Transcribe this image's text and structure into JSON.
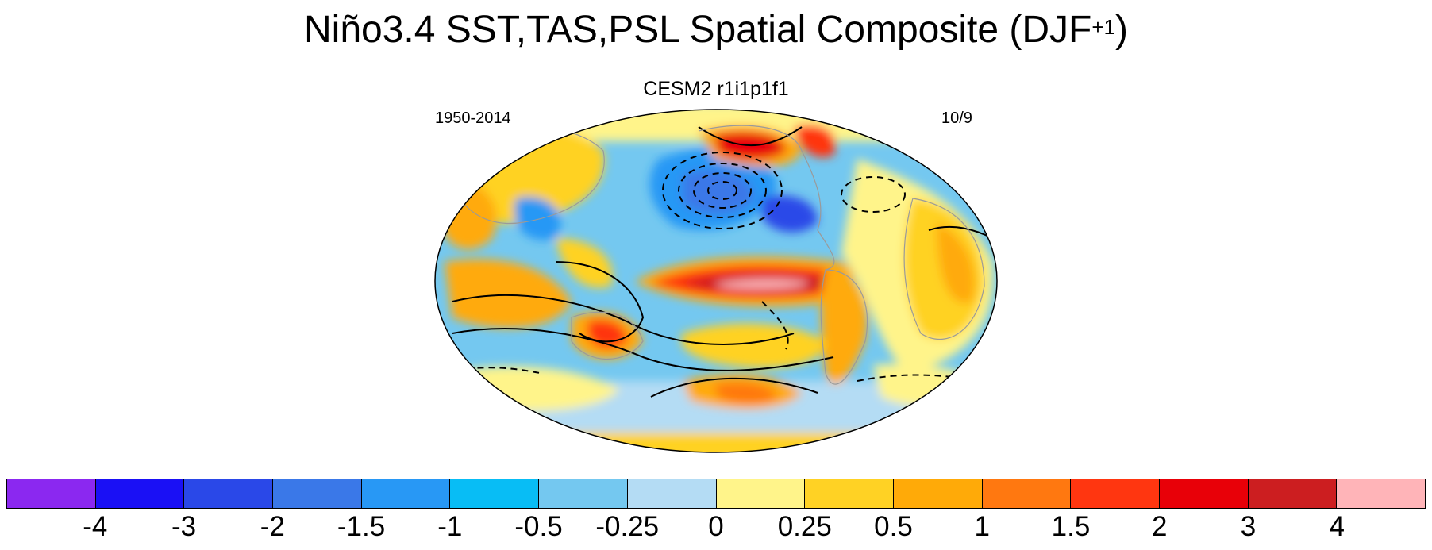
{
  "title": {
    "main": "Niño3.4 SST,TAS,PSL Spatial Composite (DJF",
    "superscript": "+1",
    "close": ")"
  },
  "subtitle": "CESM2 r1i1p1f1",
  "left_label": "1950-2014",
  "right_label": "10/9",
  "colorbar": {
    "colors": [
      "#8b28f0",
      "#1a10f5",
      "#2a48e8",
      "#3a78e8",
      "#2898f5",
      "#08bdf5",
      "#74c8f0",
      "#b4dcf4",
      "#fff48a",
      "#ffd224",
      "#ffaa08",
      "#ff7810",
      "#ff3610",
      "#e80008",
      "#cc1e20",
      "#ffb4b8"
    ],
    "tick_labels": [
      "-4",
      "-3",
      "-2",
      "-1.5",
      "-1",
      "-0.5",
      "-0.25",
      "0",
      "0.25",
      "0.5",
      "1",
      "1.5",
      "2",
      "3",
      "4"
    ]
  },
  "map": {
    "projection": "robinson",
    "ocean_base_color": "#74c8f0",
    "land_outline_color": "#9a9a9a",
    "contour_color": "#000000"
  }
}
